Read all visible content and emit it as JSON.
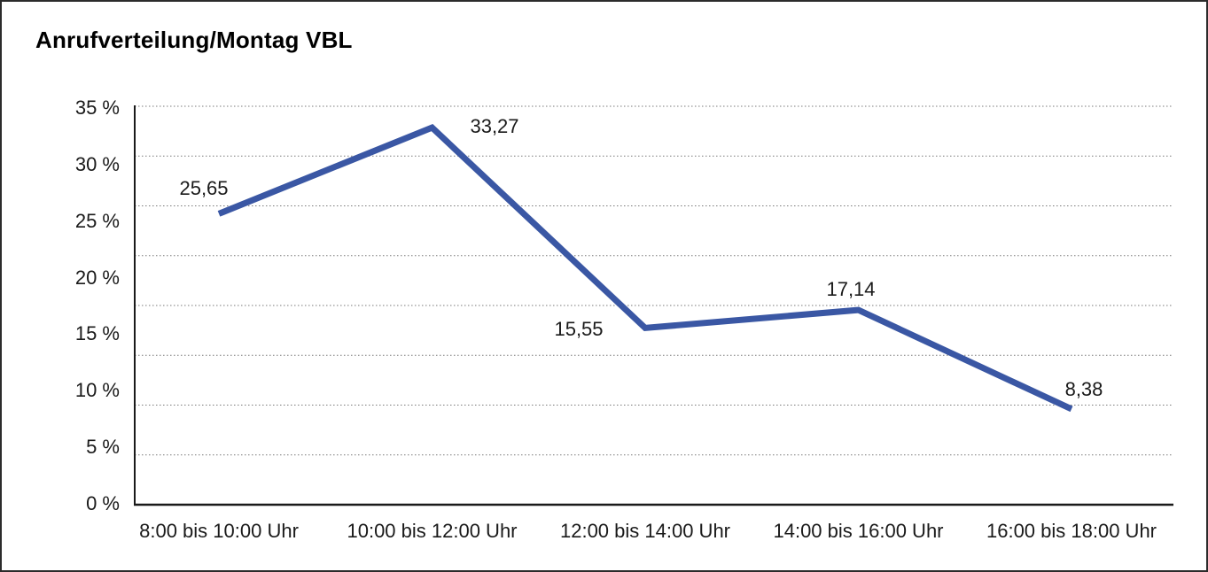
{
  "chart_data": {
    "type": "line",
    "title": "Anrufverteilung/Montag VBL",
    "categories": [
      "8:00 bis 10:00 Uhr",
      "10:00 bis 12:00 Uhr",
      "12:00 bis 14:00 Uhr",
      "14:00 bis 16:00 Uhr",
      "16:00 bis 18:00 Uhr"
    ],
    "values": [
      25.65,
      33.27,
      15.55,
      17.14,
      8.38
    ],
    "value_labels": [
      "25,65",
      "33,27",
      "15,55",
      "17,14",
      "8,38"
    ],
    "ylim": [
      0,
      35
    ],
    "ytick_step": 5,
    "ytick_labels": [
      "35 %",
      "30 %",
      "25 %",
      "20 %",
      "15 %",
      "10 %",
      "5 %",
      "0 %"
    ],
    "grid": "horizontal-dotted",
    "legend": "none",
    "colors": {
      "line": "#3A57A4",
      "axis": "#1a1a1a",
      "gridline": "#7a7a7a",
      "text": "#1a1a1a",
      "background": "#ffffff"
    }
  }
}
